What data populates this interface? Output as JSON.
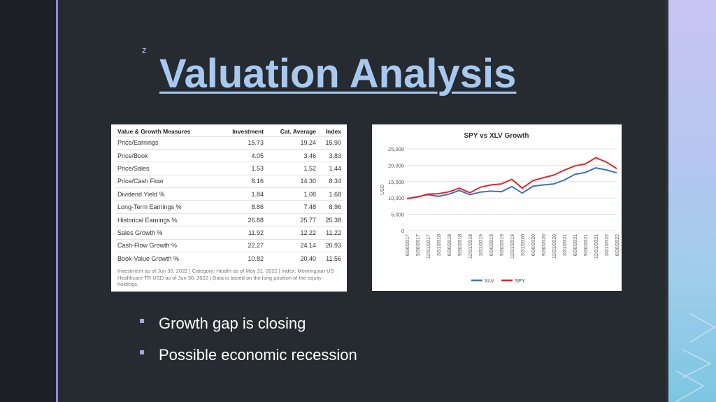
{
  "slide": {
    "corner_mark": "z",
    "title": "Valuation Analysis",
    "bullets": [
      "Growth gap is closing",
      "Possible economic recession"
    ]
  },
  "colors": {
    "background": "#252b31",
    "title": "#a9c8ee",
    "accent": "#8f86d8",
    "xlv_line": "#3f6fc4",
    "spy_line": "#e0262b"
  },
  "table": {
    "headers": [
      "Value & Growth Measures",
      "Investment",
      "Cat. Average",
      "Index"
    ],
    "rows": [
      [
        "Price/Earnings",
        "15.73",
        "19.24",
        "15.90"
      ],
      [
        "Price/Book",
        "4.05",
        "3.46",
        "3.83"
      ],
      [
        "Price/Sales",
        "1.53",
        "1.52",
        "1.44"
      ],
      [
        "Price/Cash Flow",
        "8.16",
        "14.30",
        "8.34"
      ],
      [
        "Dividend Yield %",
        "1.84",
        "1.08",
        "1.68"
      ],
      [
        "Long-Term Earnings %",
        "8.86",
        "7.48",
        "8.96"
      ],
      [
        "Historical Earnings %",
        "26.88",
        "25.77",
        "25.38"
      ],
      [
        "Sales Growth %",
        "11.92",
        "12.22",
        "11.22"
      ],
      [
        "Cash-Flow Growth %",
        "22.27",
        "24.14",
        "20.93"
      ],
      [
        "Book-Value Growth %",
        "10.82",
        "20.40",
        "11.56"
      ]
    ],
    "note": "Investment as of Jun 30, 2022 | Category: Health as of May 31, 2022 | Index: Morningstar US Healthcare TR USD as of Jun 30, 2022 | Data is based on the long position of the equity holdings."
  },
  "chart_data": {
    "type": "line",
    "title": "SPY vs XLV Growth",
    "xlabel": "",
    "ylabel": "USD",
    "ylim": [
      0,
      25000
    ],
    "yticks": [
      "0",
      "5,000",
      "10,000",
      "15,000",
      "20,000",
      "25,000"
    ],
    "ytick_values": [
      0,
      5000,
      10000,
      15000,
      20000,
      25000
    ],
    "grid": true,
    "legend": "bottom",
    "categories": [
      "6/30/2017",
      "9/30/2017",
      "12/31/2017",
      "3/31/2018",
      "6/30/2018",
      "9/30/2018",
      "12/31/2018",
      "3/31/2019",
      "6/30/2019",
      "9/30/2019",
      "12/31/2019",
      "3/31/2020",
      "6/30/2020",
      "9/30/2020",
      "12/31/2020",
      "3/31/2021",
      "6/30/2021",
      "9/30/2021",
      "12/31/2021",
      "3/31/2022",
      "6/30/2022"
    ],
    "series": [
      {
        "name": "XLV",
        "color": "#3f6fc4",
        "values": [
          9800,
          10400,
          11000,
          10500,
          11200,
          12300,
          11000,
          11800,
          12100,
          11900,
          13500,
          11500,
          13600,
          14000,
          14300,
          15500,
          17200,
          17800,
          19200,
          18600,
          17700
        ]
      },
      {
        "name": "SPY",
        "color": "#e0262b",
        "values": [
          9800,
          10300,
          11200,
          11300,
          11900,
          13000,
          11600,
          13300,
          14000,
          14300,
          15700,
          13000,
          15300,
          16200,
          17000,
          18500,
          19800,
          20400,
          22300,
          21000,
          19000
        ]
      }
    ]
  }
}
